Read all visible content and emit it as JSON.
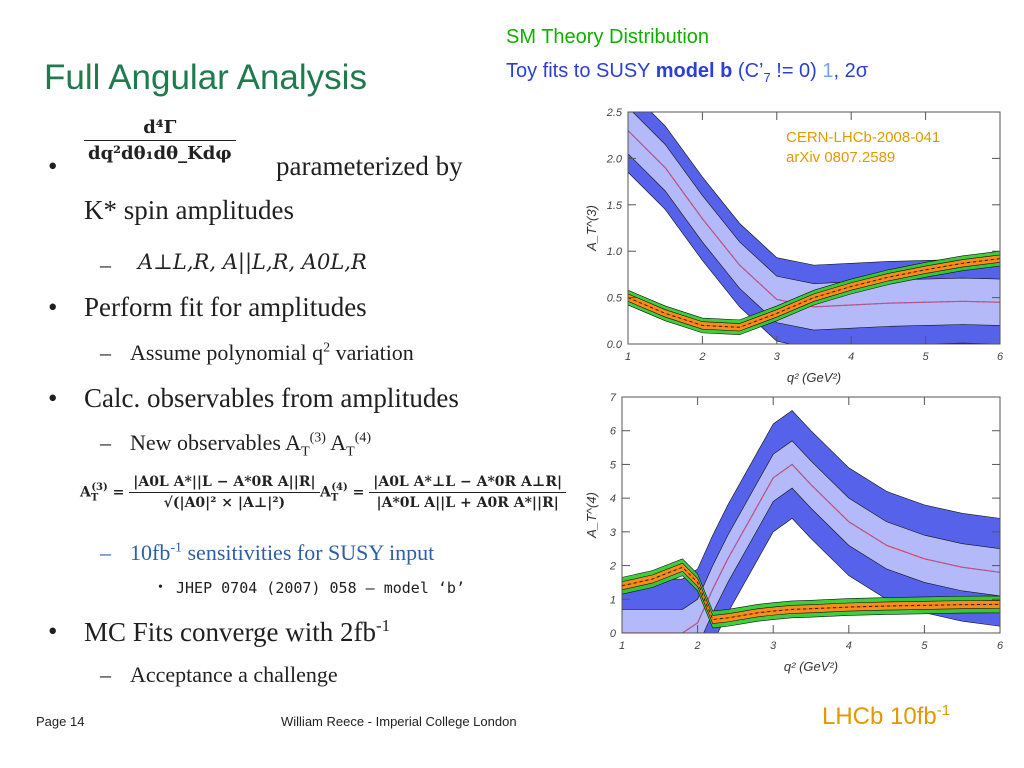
{
  "title": "Full Angular Analysis",
  "legend": {
    "line1": "SM Theory Distribution",
    "line2_prefix": "Toy fits to SUSY ",
    "line2_bold": "model b",
    "line2_mid": " (C’",
    "line2_sub": "7",
    "line2_mid2": " != 0) ",
    "sigma1": "1",
    "sigma_sep": ", 2σ"
  },
  "bullets": {
    "b1_text": "parameterized by",
    "b1_text2": "K* spin amplitudes",
    "b1_formula_num": "d⁴Γ",
    "b1_formula_den": "dq²dθ₁dθ_Kdφ",
    "b1_sub_formula": "A⊥L,R, A||L,R, A0L,R",
    "b2_text": "Perform fit for amplitudes",
    "b2_sub_text": "Assume polynomial q",
    "b2_sub_sup": "2",
    "b2_sub_tail": " variation",
    "b3_text": "Calc. observables from amplitudes",
    "b3_sub_text": "New observables A",
    "b3_sub_t1": "T",
    "b3_sub_sup1": "(3)",
    "b3_sub_sp": " A",
    "b3_sub_t2": "T",
    "b3_sub_sup2": "(4)",
    "b3_eq1_lhs": "A",
    "b3_eq1_num": "|A0L A*||L − A*0R A||R|",
    "b3_eq1_den": "√(|A0|² × |A⊥|²)",
    "b3_eq2_lhs": "A",
    "b3_eq2_num": "|A0L A*⊥L − A*0R A⊥R|",
    "b3_eq2_den": "|A*0L A||L + A0R A*||R|",
    "b3_sub2_text": "10fb",
    "b3_sub2_sup": "-1",
    "b3_sub2_tail": " sensitivities for SUSY input",
    "b3_sub3_text": "JHEP 0704 (2007) 058 – model ‘b’",
    "b4_text": "MC Fits converge with 2fb",
    "b4_sup": "-1",
    "b4_sub_text": "Acceptance a challenge",
    "dash": "–",
    "dot": "•",
    "sdot": "•"
  },
  "footer": {
    "page": "Page 14",
    "author": "William Reece - Imperial College London",
    "lhcb": "LHCb 10fb",
    "lhcb_sup": "-1"
  },
  "reference": {
    "line1": "CERN-LHCb-2008-041",
    "line2": "arXiv 0807.2589"
  },
  "chart_data": [
    {
      "type": "line",
      "ylabel": "A_T^(3)",
      "xlabel": "q² (GeV²)",
      "xlim": [
        1,
        6
      ],
      "ylim": [
        0,
        2.5
      ],
      "xticks": [
        "1",
        "2",
        "3",
        "4",
        "5",
        "6"
      ],
      "yticks": [
        "0.0",
        "0.5",
        "1.0",
        "1.5",
        "2.0",
        "2.5"
      ],
      "x": [
        1.0,
        1.5,
        2.0,
        2.5,
        3.0,
        3.5,
        4.0,
        4.5,
        5.0,
        5.5,
        6.0
      ],
      "series": [
        {
          "values": [
            0.5,
            0.33,
            0.2,
            0.18,
            0.33,
            0.5,
            0.62,
            0.72,
            0.8,
            0.87,
            0.92
          ],
          "band1": 0.04,
          "band2": 0.08,
          "color": "#ff6a00",
          "band_color": "#33cc33"
        },
        {
          "values": [
            2.3,
            1.9,
            1.35,
            0.85,
            0.48,
            0.4,
            0.42,
            0.44,
            0.45,
            0.46,
            0.45
          ],
          "band1": 0.25,
          "band2": 0.45,
          "color": "#ee4455",
          "band_color": "#4d5ae8"
        }
      ]
    },
    {
      "type": "line",
      "ylabel": "A_T^(4)",
      "xlabel": "q² (GeV²)",
      "xlim": [
        1,
        6
      ],
      "ylim": [
        0,
        7
      ],
      "xticks": [
        "1",
        "2",
        "3",
        "4",
        "5",
        "6"
      ],
      "yticks": [
        "0",
        "1",
        "2",
        "3",
        "4",
        "5",
        "6",
        "7"
      ],
      "x": [
        1.0,
        1.4,
        1.8,
        2.0,
        2.2,
        2.4,
        2.8,
        3.0,
        3.25,
        3.5,
        4.0,
        4.5,
        5.0,
        5.5,
        6.0
      ],
      "series": [
        {
          "values": [
            1.4,
            1.6,
            1.95,
            1.5,
            0.4,
            0.45,
            0.6,
            0.65,
            0.7,
            0.72,
            0.77,
            0.8,
            0.82,
            0.84,
            0.85
          ],
          "band1": 0.12,
          "band2": 0.25,
          "color": "#ff6a00",
          "band_color": "#33cc33"
        },
        {
          "values": [
            0.0,
            0.0,
            0.0,
            0.3,
            1.3,
            2.2,
            3.8,
            4.6,
            5.0,
            4.4,
            3.3,
            2.6,
            2.2,
            1.95,
            1.8
          ],
          "band1": 0.7,
          "band2": 1.6,
          "color": "#ee4455",
          "band_color": "#4d5ae8"
        }
      ]
    }
  ]
}
